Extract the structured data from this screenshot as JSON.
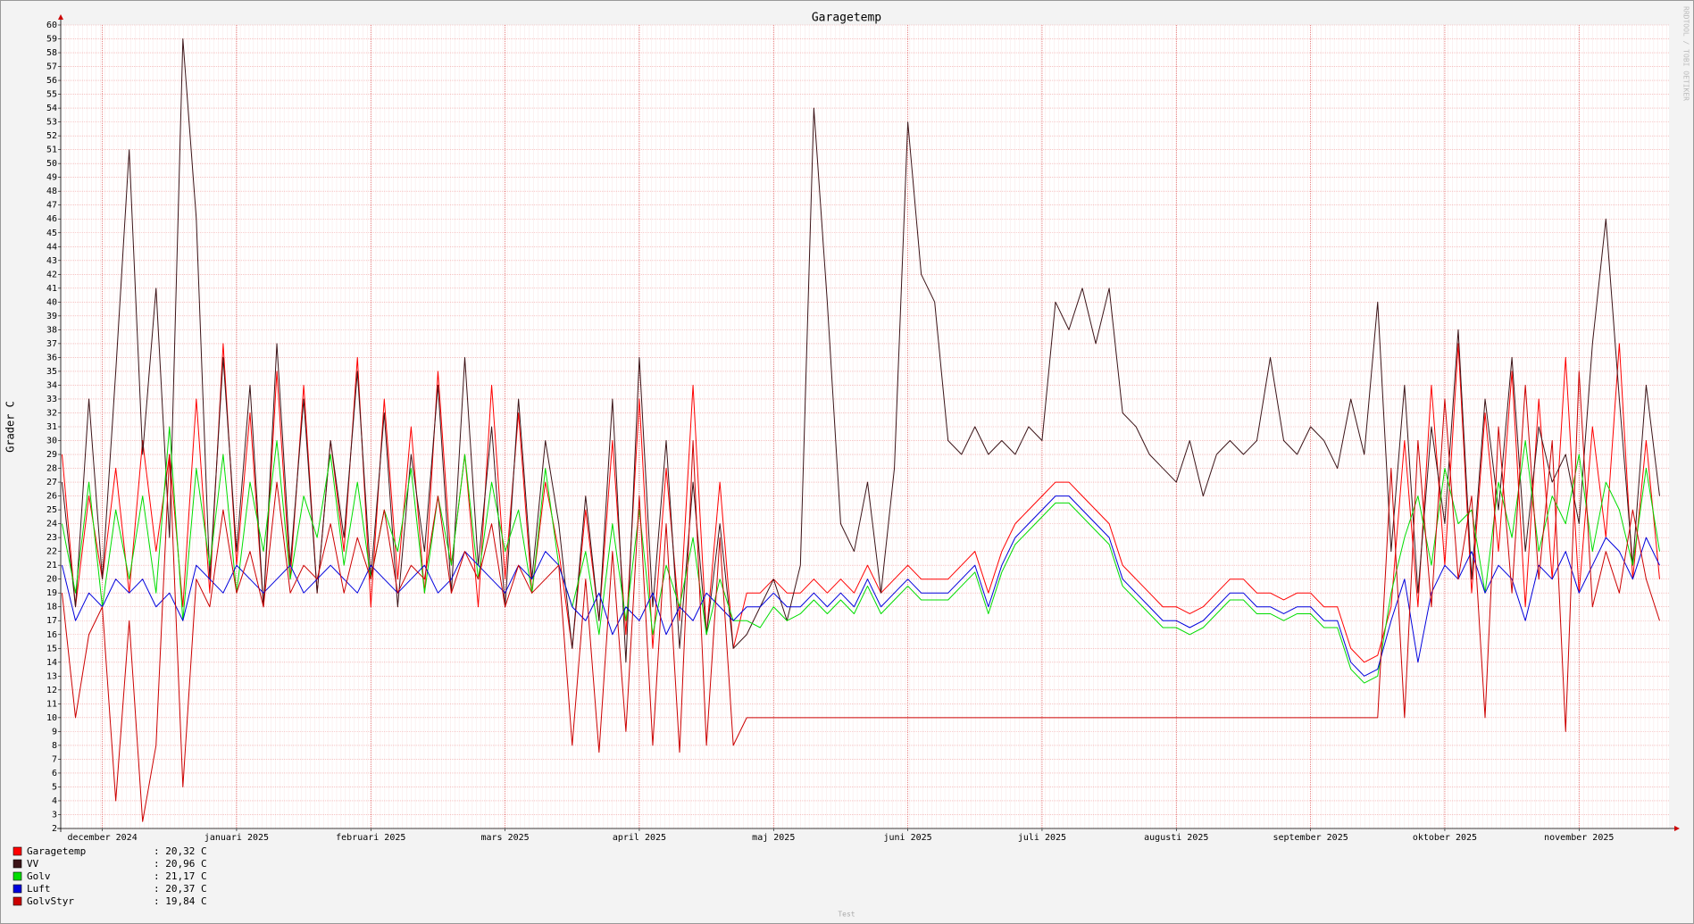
{
  "chart_data": {
    "type": "line",
    "title": "Garagetemp",
    "ylabel": "Grader C",
    "watermark": "RRDTOOL / TOBI OETIKER",
    "footer": "Test",
    "ylim": [
      2,
      60
    ],
    "yticks": [
      2,
      3,
      4,
      5,
      6,
      7,
      8,
      9,
      10,
      11,
      12,
      13,
      14,
      15,
      16,
      17,
      18,
      19,
      20,
      21,
      22,
      23,
      24,
      25,
      26,
      27,
      28,
      29,
      30,
      31,
      32,
      33,
      34,
      35,
      36,
      37,
      38,
      39,
      40,
      41,
      42,
      43,
      44,
      45,
      46,
      47,
      48,
      49,
      50,
      51,
      52,
      53,
      54,
      55,
      56,
      57,
      58,
      59,
      60
    ],
    "xlim": [
      -0.31,
      11.67
    ],
    "xticks": [
      {
        "value": 0,
        "label": "december 2024"
      },
      {
        "value": 1,
        "label": "januari 2025"
      },
      {
        "value": 2,
        "label": "februari 2025"
      },
      {
        "value": 3,
        "label": "mars 2025"
      },
      {
        "value": 4,
        "label": "april 2025"
      },
      {
        "value": 5,
        "label": "maj 2025"
      },
      {
        "value": 6,
        "label": "juni 2025"
      },
      {
        "value": 7,
        "label": "juli 2025"
      },
      {
        "value": 8,
        "label": "augusti 2025"
      },
      {
        "value": 9,
        "label": "september 2025"
      },
      {
        "value": 10,
        "label": "oktober 2025"
      },
      {
        "value": 11,
        "label": "november 2025"
      }
    ],
    "grid": true,
    "x": [
      -0.3,
      -0.2,
      -0.1,
      0,
      0.1,
      0.2,
      0.3,
      0.4,
      0.5,
      0.6,
      0.7,
      0.8,
      0.9,
      1,
      1.1,
      1.2,
      1.3,
      1.4,
      1.5,
      1.6,
      1.7,
      1.8,
      1.9,
      2,
      2.1,
      2.2,
      2.3,
      2.4,
      2.5,
      2.6,
      2.7,
      2.8,
      2.9,
      3,
      3.1,
      3.2,
      3.3,
      3.4,
      3.5,
      3.6,
      3.7,
      3.8,
      3.9,
      4,
      4.1,
      4.2,
      4.3,
      4.4,
      4.5,
      4.6,
      4.7,
      4.8,
      4.9,
      5,
      5.1,
      5.2,
      5.3,
      5.4,
      5.5,
      5.6,
      5.7,
      5.8,
      5.9,
      6,
      6.1,
      6.2,
      6.3,
      6.4,
      6.5,
      6.6,
      6.7,
      6.8,
      6.9,
      7,
      7.1,
      7.2,
      7.3,
      7.4,
      7.5,
      7.6,
      7.7,
      7.8,
      7.9,
      8,
      8.1,
      8.2,
      8.3,
      8.4,
      8.5,
      8.6,
      8.7,
      8.8,
      8.9,
      9,
      9.1,
      9.2,
      9.3,
      9.4,
      9.5,
      9.6,
      9.7,
      9.8,
      9.9,
      10,
      10.1,
      10.2,
      10.3,
      10.4,
      10.5,
      10.6,
      10.7,
      10.8,
      10.9,
      11,
      11.1,
      11.2,
      11.3,
      11.4,
      11.5,
      11.6
    ],
    "series": [
      {
        "name": "Garagetemp",
        "current": ": 20,32 C",
        "color": "#ff0000",
        "values": [
          29,
          18,
          26,
          20,
          28,
          19,
          30,
          22,
          29,
          18,
          33,
          19,
          37,
          21,
          32,
          18,
          35,
          20,
          34,
          19,
          30,
          22,
          36,
          18,
          33,
          20,
          31,
          19,
          35,
          21,
          29,
          18,
          34,
          20,
          32,
          19,
          27,
          22,
          15,
          25,
          17,
          30,
          16,
          33,
          15,
          28,
          17,
          34,
          16,
          27,
          15,
          19,
          19,
          20,
          19,
          19,
          20,
          19,
          20,
          19,
          21,
          19,
          20,
          21,
          20,
          20,
          20,
          21,
          22,
          19,
          22,
          24,
          25,
          26,
          27,
          27,
          26,
          25,
          24,
          21,
          20,
          19,
          18,
          18,
          17.5,
          18,
          19,
          20,
          20,
          19,
          19,
          18.5,
          19,
          19,
          18,
          18,
          15,
          14,
          14.5,
          18,
          30,
          18,
          34,
          21,
          37,
          19,
          32,
          22,
          35,
          18,
          33,
          20,
          36,
          19,
          31,
          23,
          37,
          20,
          30,
          20
        ]
      },
      {
        "name": "VV",
        "current": ": 20,96 C",
        "color": "#3c1418",
        "values": [
          27,
          18,
          33,
          20,
          35,
          51,
          29,
          41,
          23,
          59,
          46,
          20,
          36,
          22,
          34,
          18,
          37,
          21,
          33,
          19,
          30,
          23,
          35,
          20,
          32,
          18,
          29,
          22,
          34,
          19,
          36,
          21,
          31,
          18,
          33,
          20,
          30,
          24,
          15,
          26,
          17,
          33,
          14,
          36,
          18,
          30,
          15,
          27,
          16,
          24,
          15,
          16,
          18,
          20,
          17,
          21,
          54,
          40,
          24,
          22,
          27,
          19,
          28,
          53,
          42,
          40,
          30,
          29,
          31,
          29,
          30,
          29,
          31,
          30,
          40,
          38,
          41,
          37,
          41,
          32,
          31,
          29,
          28,
          27,
          30,
          26,
          29,
          30,
          29,
          30,
          36,
          30,
          29,
          31,
          30,
          28,
          33,
          29,
          40,
          22,
          34,
          19,
          31,
          24,
          38,
          20,
          33,
          25,
          36,
          22,
          31,
          27,
          29,
          24,
          37,
          46,
          33,
          21,
          34,
          26
        ]
      },
      {
        "name": "Golv",
        "current": ": 21,17 C",
        "color": "#00dd00",
        "values": [
          24,
          19,
          27,
          18,
          25,
          20,
          26,
          19,
          31,
          17,
          28,
          21,
          29,
          19,
          27,
          22,
          30,
          20,
          26,
          23,
          29,
          21,
          27,
          20,
          25,
          22,
          28,
          19,
          26,
          21,
          29,
          20,
          27,
          22,
          25,
          19,
          28,
          21,
          18,
          22,
          16,
          24,
          17,
          25,
          16,
          21,
          18,
          23,
          16,
          20,
          17,
          17,
          16.5,
          18,
          17,
          17.5,
          18.5,
          17.5,
          18.5,
          17.5,
          19.5,
          17.5,
          18.5,
          19.5,
          18.5,
          18.5,
          18.5,
          19.5,
          20.5,
          17.5,
          20.5,
          22.5,
          23.5,
          24.5,
          25.5,
          25.5,
          24.5,
          23.5,
          22.5,
          19.5,
          18.5,
          17.5,
          16.5,
          16.5,
          16,
          16.5,
          17.5,
          18.5,
          18.5,
          17.5,
          17.5,
          17,
          17.5,
          17.5,
          16.5,
          16.5,
          13.5,
          12.5,
          13,
          19,
          23,
          26,
          21,
          28,
          24,
          25,
          19,
          27,
          23,
          30,
          22,
          26,
          24,
          29,
          22,
          27,
          25,
          21,
          28,
          22
        ]
      },
      {
        "name": "Luft",
        "current": ": 20,37 C",
        "color": "#0000dd",
        "values": [
          21,
          17,
          19,
          18,
          20,
          19,
          20,
          18,
          19,
          17,
          21,
          20,
          19,
          21,
          20,
          19,
          20,
          21,
          19,
          20,
          21,
          20,
          19,
          21,
          20,
          19,
          20,
          21,
          19,
          20,
          22,
          21,
          20,
          19,
          21,
          20,
          22,
          21,
          18,
          17,
          19,
          16,
          18,
          17,
          19,
          16,
          18,
          17,
          19,
          18,
          17,
          18,
          18,
          19,
          18,
          18,
          19,
          18,
          19,
          18,
          20,
          18,
          19,
          20,
          19,
          19,
          19,
          20,
          21,
          18,
          21,
          23,
          24,
          25,
          26,
          26,
          25,
          24,
          23,
          20,
          19,
          18,
          17,
          17,
          16.5,
          17,
          18,
          19,
          19,
          18,
          18,
          17.5,
          18,
          18,
          17,
          17,
          14,
          13,
          13.5,
          17,
          20,
          14,
          19,
          21,
          20,
          22,
          19,
          21,
          20,
          17,
          21,
          20,
          22,
          19,
          21,
          23,
          22,
          20,
          23,
          21
        ]
      },
      {
        "name": "GolvStyr",
        "current": ": 19,84 C",
        "color": "#cc0000",
        "values": [
          19,
          10,
          16,
          18,
          4,
          17,
          2.5,
          8,
          29,
          5,
          20,
          18,
          25,
          19,
          22,
          18,
          27,
          19,
          21,
          20,
          24,
          19,
          23,
          20,
          25,
          19,
          21,
          20,
          26,
          19,
          22,
          20,
          24,
          18,
          21,
          19,
          20,
          21,
          8,
          20,
          7.5,
          22,
          9,
          26,
          8,
          24,
          7.5,
          30,
          8,
          23,
          8,
          10,
          10,
          10,
          10,
          10,
          10,
          10,
          10,
          10,
          10,
          10,
          10,
          10,
          10,
          10,
          10,
          10,
          10,
          10,
          10,
          10,
          10,
          10,
          10,
          10,
          10,
          10,
          10,
          10,
          10,
          10,
          10,
          10,
          10,
          10,
          10,
          10,
          10,
          10,
          10,
          10,
          10,
          10,
          10,
          10,
          10,
          10,
          10,
          28,
          10,
          30,
          18,
          33,
          20,
          26,
          10,
          31,
          19,
          34,
          20,
          30,
          9,
          35,
          18,
          22,
          19,
          25,
          20,
          17
        ]
      }
    ]
  }
}
